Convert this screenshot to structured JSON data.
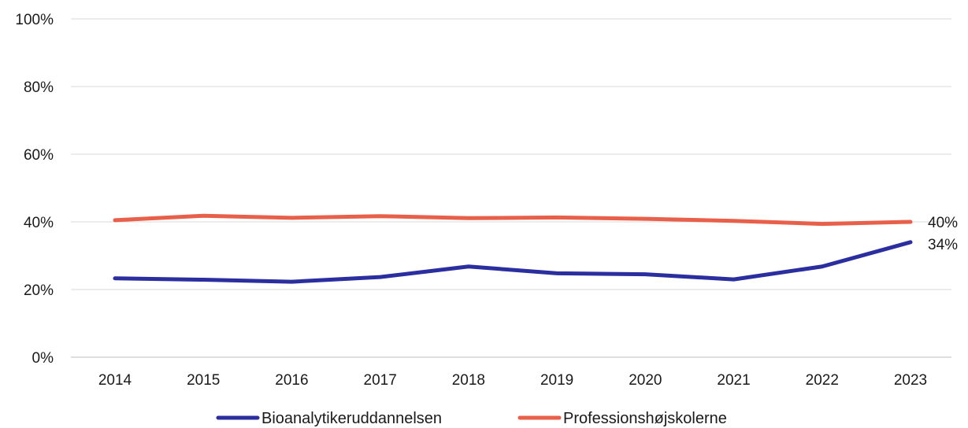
{
  "chart_data": {
    "type": "line",
    "title": "",
    "xlabel": "",
    "ylabel": "",
    "x": [
      "2014",
      "2015",
      "2016",
      "2017",
      "2018",
      "2019",
      "2020",
      "2021",
      "2022",
      "2023"
    ],
    "ylim": [
      0,
      100
    ],
    "y_ticks": [
      0,
      20,
      40,
      60,
      80,
      100
    ],
    "y_tick_labels": [
      "0%",
      "20%",
      "40%",
      "60%",
      "80%",
      "100%"
    ],
    "grid": "horizontal",
    "legend_position": "bottom",
    "series": [
      {
        "name": "Bioanalytikeruddannelsen",
        "color": "#2b2e9e",
        "values": [
          23.3,
          22.9,
          22.3,
          23.7,
          26.8,
          24.8,
          24.5,
          23.0,
          26.8,
          34.0
        ],
        "end_label": "34%"
      },
      {
        "name": "Professionshøjskolerne",
        "color": "#e8604a",
        "values": [
          40.5,
          41.8,
          41.2,
          41.7,
          41.1,
          41.3,
          40.9,
          40.3,
          39.4,
          40.0
        ],
        "end_label": "40%"
      }
    ]
  }
}
